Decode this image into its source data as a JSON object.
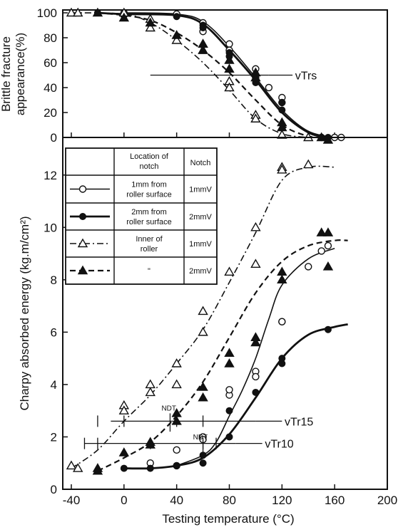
{
  "chart_data": [
    {
      "type": "line",
      "ylabel": "Brittle fracture appearance(%)",
      "xlim": [
        -40,
        200
      ],
      "ylim": [
        0,
        100
      ],
      "xticks": [
        -40,
        0,
        40,
        80,
        120,
        160,
        200
      ],
      "yticks": [
        0,
        20,
        40,
        60,
        80,
        100
      ],
      "annotations": [
        {
          "text": "vTrs",
          "y": 50
        }
      ],
      "series": [
        {
          "key": "s1",
          "curve": [
            [
              0,
              100
            ],
            [
              40,
              99
            ],
            [
              60,
              93
            ],
            [
              80,
              73
            ],
            [
              100,
              48
            ],
            [
              120,
              22
            ],
            [
              140,
              5
            ],
            [
              160,
              0
            ]
          ],
          "points": [
            [
              0,
              100
            ],
            [
              0,
              98
            ],
            [
              40,
              99
            ],
            [
              60,
              92
            ],
            [
              60,
              85
            ],
            [
              80,
              75
            ],
            [
              80,
              70
            ],
            [
              100,
              55
            ],
            [
              100,
              48
            ],
            [
              110,
              40
            ],
            [
              120,
              32
            ],
            [
              120,
              28
            ],
            [
              150,
              0
            ],
            [
              160,
              0
            ],
            [
              165,
              0
            ]
          ]
        },
        {
          "key": "s2",
          "curve": [
            [
              -20,
              100
            ],
            [
              0,
              99
            ],
            [
              40,
              98
            ],
            [
              60,
              91
            ],
            [
              80,
              70
            ],
            [
              100,
              46
            ],
            [
              120,
              20
            ],
            [
              140,
              4
            ],
            [
              155,
              0
            ]
          ],
          "points": [
            [
              -20,
              100
            ],
            [
              0,
              98
            ],
            [
              40,
              97
            ],
            [
              60,
              90
            ],
            [
              60,
              88
            ],
            [
              80,
              68
            ],
            [
              80,
              65
            ],
            [
              100,
              50
            ],
            [
              100,
              44
            ],
            [
              120,
              28
            ],
            [
              120,
              22
            ],
            [
              150,
              0
            ],
            [
              155,
              0
            ]
          ]
        },
        {
          "key": "s3",
          "curve": [
            [
              -40,
              100
            ],
            [
              0,
              99
            ],
            [
              20,
              92
            ],
            [
              40,
              78
            ],
            [
              60,
              60
            ],
            [
              80,
              38
            ],
            [
              100,
              15
            ],
            [
              120,
              3
            ],
            [
              140,
              0
            ]
          ],
          "points": [
            [
              -40,
              100
            ],
            [
              -35,
              100
            ],
            [
              0,
              100
            ],
            [
              20,
              95
            ],
            [
              20,
              88
            ],
            [
              40,
              78
            ],
            [
              60,
              75
            ],
            [
              60,
              70
            ],
            [
              80,
              45
            ],
            [
              80,
              40
            ],
            [
              100,
              18
            ],
            [
              100,
              15
            ],
            [
              120,
              2
            ],
            [
              140,
              0
            ]
          ]
        },
        {
          "key": "s4",
          "curve": [
            [
              -20,
              100
            ],
            [
              0,
              98
            ],
            [
              20,
              94
            ],
            [
              40,
              84
            ],
            [
              60,
              70
            ],
            [
              80,
              52
            ],
            [
              100,
              30
            ],
            [
              120,
              10
            ],
            [
              140,
              1
            ],
            [
              155,
              0
            ]
          ],
          "points": [
            [
              -20,
              100
            ],
            [
              0,
              96
            ],
            [
              20,
              92
            ],
            [
              40,
              82
            ],
            [
              60,
              75
            ],
            [
              60,
              70
            ],
            [
              80,
              62
            ],
            [
              80,
              55
            ],
            [
              100,
              52
            ],
            [
              100,
              48
            ],
            [
              120,
              12
            ],
            [
              120,
              8
            ],
            [
              150,
              0
            ],
            [
              155,
              -2
            ]
          ]
        }
      ]
    },
    {
      "type": "line",
      "xlabel": "Testing temperature (°C)",
      "ylabel": "Charpy absorbed energy (kg.m/cm²)",
      "xlim": [
        -40,
        200
      ],
      "ylim": [
        0,
        13
      ],
      "xticks": [
        -40,
        0,
        40,
        80,
        120,
        160,
        200
      ],
      "yticks": [
        0,
        2,
        4,
        6,
        8,
        10,
        12
      ],
      "annotations": [
        {
          "text": "vTr15",
          "y": 2.6
        },
        {
          "text": "vTr10",
          "y": 1.75
        },
        {
          "text": "NDT",
          "x": 35
        },
        {
          "text": "NDT",
          "x": 60
        }
      ],
      "series": [
        {
          "key": "s1",
          "curve": [
            [
              40,
              0.9
            ],
            [
              60,
              1.3
            ],
            [
              70,
              1.8
            ],
            [
              80,
              2.8
            ],
            [
              90,
              3.8
            ],
            [
              100,
              5.0
            ],
            [
              110,
              6.5
            ],
            [
              120,
              7.8
            ],
            [
              140,
              8.8
            ],
            [
              160,
              9.2
            ]
          ],
          "points": [
            [
              20,
              1.0
            ],
            [
              40,
              0.9
            ],
            [
              40,
              1.5
            ],
            [
              60,
              2.0
            ],
            [
              60,
              1.9
            ],
            [
              80,
              3.6
            ],
            [
              80,
              3.8
            ],
            [
              100,
              4.5
            ],
            [
              100,
              4.3
            ],
            [
              120,
              6.4
            ],
            [
              120,
              6.4
            ],
            [
              140,
              8.5
            ],
            [
              150,
              9.1
            ],
            [
              155,
              9.3
            ]
          ]
        },
        {
          "key": "s2",
          "curve": [
            [
              0,
              0.8
            ],
            [
              20,
              0.8
            ],
            [
              40,
              0.9
            ],
            [
              60,
              1.2
            ],
            [
              80,
              2.1
            ],
            [
              100,
              3.5
            ],
            [
              120,
              5.0
            ],
            [
              140,
              5.9
            ],
            [
              160,
              6.2
            ],
            [
              170,
              6.3
            ]
          ],
          "points": [
            [
              0,
              0.8
            ],
            [
              20,
              0.8
            ],
            [
              40,
              0.9
            ],
            [
              60,
              1.0
            ],
            [
              60,
              1.3
            ],
            [
              80,
              2.0
            ],
            [
              80,
              3.0
            ],
            [
              100,
              3.7
            ],
            [
              120,
              4.8
            ],
            [
              120,
              5.0
            ],
            [
              155,
              6.1
            ]
          ]
        },
        {
          "key": "s3",
          "curve": [
            [
              -40,
              0.8
            ],
            [
              -20,
              1.5
            ],
            [
              0,
              2.6
            ],
            [
              20,
              3.6
            ],
            [
              40,
              4.8
            ],
            [
              60,
              6.1
            ],
            [
              80,
              7.9
            ],
            [
              100,
              9.8
            ],
            [
              120,
              11.8
            ],
            [
              140,
              12.3
            ],
            [
              160,
              12.3
            ]
          ],
          "points": [
            [
              -40,
              0.9
            ],
            [
              -35,
              0.8
            ],
            [
              0,
              3.2
            ],
            [
              0,
              3.0
            ],
            [
              20,
              4.0
            ],
            [
              20,
              3.7
            ],
            [
              40,
              4.0
            ],
            [
              40,
              4.8
            ],
            [
              60,
              6.8
            ],
            [
              60,
              6.0
            ],
            [
              80,
              8.3
            ],
            [
              100,
              10.0
            ],
            [
              100,
              8.6
            ],
            [
              120,
              12.3
            ],
            [
              120,
              12.2
            ],
            [
              140,
              12.4
            ]
          ]
        },
        {
          "key": "s4",
          "curve": [
            [
              -20,
              0.7
            ],
            [
              0,
              1.2
            ],
            [
              20,
              1.8
            ],
            [
              40,
              2.8
            ],
            [
              60,
              4.1
            ],
            [
              80,
              5.8
            ],
            [
              100,
              7.5
            ],
            [
              120,
              8.7
            ],
            [
              140,
              9.3
            ],
            [
              160,
              9.5
            ],
            [
              170,
              9.5
            ]
          ],
          "points": [
            [
              -20,
              0.7
            ],
            [
              -20,
              0.8
            ],
            [
              0,
              1.4
            ],
            [
              20,
              1.7
            ],
            [
              20,
              1.8
            ],
            [
              40,
              2.6
            ],
            [
              40,
              2.9
            ],
            [
              60,
              3.5
            ],
            [
              60,
              3.9
            ],
            [
              80,
              4.8
            ],
            [
              80,
              5.2
            ],
            [
              100,
              5.6
            ],
            [
              100,
              5.8
            ],
            [
              120,
              8.0
            ],
            [
              120,
              8.3
            ],
            [
              150,
              9.8
            ],
            [
              155,
              9.8
            ],
            [
              155,
              8.5
            ]
          ]
        }
      ]
    }
  ],
  "legend": {
    "headers": [
      "Location of notch",
      "Notch"
    ],
    "rows": [
      {
        "location": [
          "1mm from",
          "roller surface"
        ],
        "notch": "1mmV"
      },
      {
        "location": [
          "2mm from",
          "roller surface"
        ],
        "notch": "2mmV"
      },
      {
        "location": [
          "Inner of",
          "roller"
        ],
        "notch": "1mmV"
      },
      {
        "location": [
          "\""
        ],
        "notch": "2mmV"
      }
    ]
  },
  "styles": {
    "s1": {
      "marker": "circle-open",
      "dash": "solid",
      "color": "#111111"
    },
    "s2": {
      "marker": "circle-filled",
      "dash": "solid-bold",
      "color": "#111111"
    },
    "s3": {
      "marker": "triangle-open",
      "dash": "dash-dot",
      "color": "#111111"
    },
    "s4": {
      "marker": "triangle-filled",
      "dash": "dashed",
      "color": "#111111"
    }
  }
}
